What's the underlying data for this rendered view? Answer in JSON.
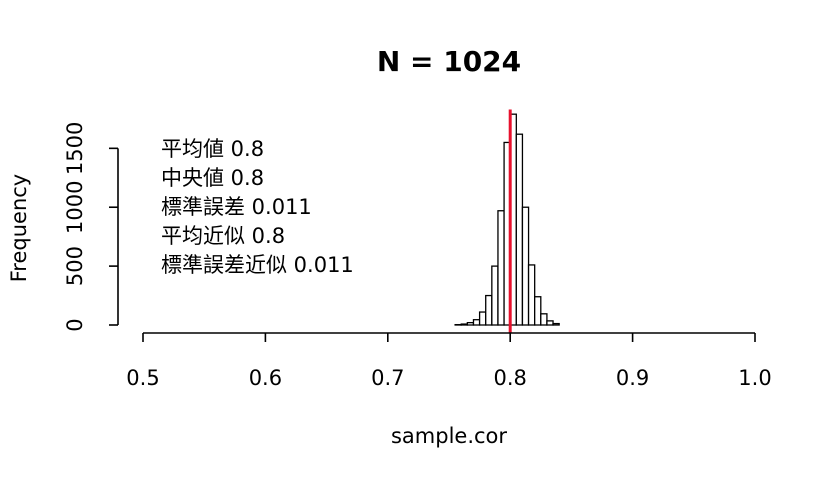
{
  "chart_data": {
    "type": "bar",
    "title": "N = 1024",
    "xlabel": "sample.cor",
    "ylabel": "Frequency",
    "xlim": [
      0.5,
      1.0
    ],
    "ylim": [
      0,
      1800
    ],
    "x_ticks": [
      "0.5",
      "0.6",
      "0.7",
      "0.8",
      "0.9",
      "1.0"
    ],
    "y_ticks": [
      "0",
      "500",
      "1000",
      "1500"
    ],
    "bin_width": 0.005,
    "bins": [
      {
        "x0": 0.755,
        "x1": 0.76,
        "count": 3
      },
      {
        "x0": 0.76,
        "x1": 0.765,
        "count": 8
      },
      {
        "x0": 0.765,
        "x1": 0.77,
        "count": 20
      },
      {
        "x0": 0.77,
        "x1": 0.775,
        "count": 45
      },
      {
        "x0": 0.775,
        "x1": 0.78,
        "count": 110
      },
      {
        "x0": 0.78,
        "x1": 0.785,
        "count": 250
      },
      {
        "x0": 0.785,
        "x1": 0.79,
        "count": 500
      },
      {
        "x0": 0.79,
        "x1": 0.795,
        "count": 970
      },
      {
        "x0": 0.795,
        "x1": 0.8,
        "count": 1550
      },
      {
        "x0": 0.8,
        "x1": 0.805,
        "count": 1790
      },
      {
        "x0": 0.805,
        "x1": 0.81,
        "count": 1620
      },
      {
        "x0": 0.81,
        "x1": 0.815,
        "count": 1000
      },
      {
        "x0": 0.815,
        "x1": 0.82,
        "count": 510
      },
      {
        "x0": 0.82,
        "x1": 0.825,
        "count": 240
      },
      {
        "x0": 0.825,
        "x1": 0.83,
        "count": 95
      },
      {
        "x0": 0.83,
        "x1": 0.835,
        "count": 35
      },
      {
        "x0": 0.835,
        "x1": 0.84,
        "count": 12
      }
    ],
    "reference_line": {
      "x": 0.8,
      "color": "#e8112d"
    },
    "annotations": [
      "平均値 0.8",
      "中央値 0.8",
      "標準誤差 0.011",
      "平均近似 0.8",
      "標準誤差近似 0.011"
    ],
    "grid": false
  }
}
